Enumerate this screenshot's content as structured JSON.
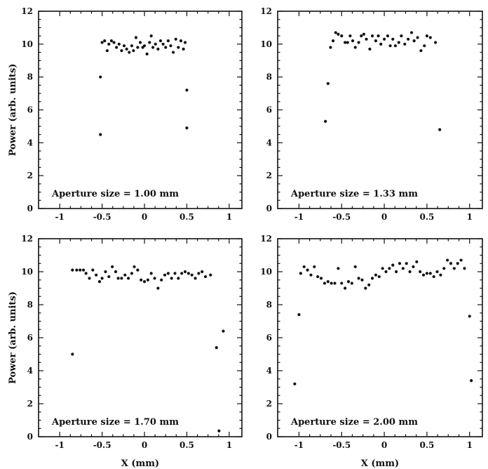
{
  "chart_data": [
    {
      "type": "scatter",
      "annotation": "Aperture size = 1.00 mm",
      "xlabel": "",
      "ylabel": "Power (arb. units)",
      "xlim": [
        -1.25,
        1.15
      ],
      "ylim": [
        0,
        12
      ],
      "xticks": [
        "-1",
        "-0.5",
        "0",
        "0.5",
        "1"
      ],
      "xtick_values": [
        -1,
        -0.5,
        0,
        0.5,
        1
      ],
      "yticks": [
        "0",
        "2",
        "4",
        "6",
        "8",
        "10",
        "12"
      ],
      "ytick_values": [
        0,
        2,
        4,
        6,
        8,
        10,
        12
      ],
      "grid": false,
      "points": [
        [
          -0.52,
          4.5
        ],
        [
          -0.52,
          8.0
        ],
        [
          0.5,
          7.2
        ],
        [
          0.5,
          4.9
        ],
        [
          -0.5,
          10.1
        ],
        [
          -0.47,
          10.2
        ],
        [
          -0.44,
          9.6
        ],
        [
          -0.42,
          10.0
        ],
        [
          -0.39,
          10.2
        ],
        [
          -0.36,
          10.1
        ],
        [
          -0.33,
          9.8
        ],
        [
          -0.3,
          10.0
        ],
        [
          -0.27,
          9.6
        ],
        [
          -0.24,
          9.9
        ],
        [
          -0.21,
          9.7
        ],
        [
          -0.18,
          9.5
        ],
        [
          -0.15,
          9.9
        ],
        [
          -0.13,
          9.6
        ],
        [
          -0.1,
          10.4
        ],
        [
          -0.08,
          9.8
        ],
        [
          -0.05,
          10.1
        ],
        [
          -0.02,
          9.8
        ],
        [
          0.0,
          9.9
        ],
        [
          0.03,
          9.4
        ],
        [
          0.06,
          10.1
        ],
        [
          0.08,
          10.5
        ],
        [
          0.1,
          9.8
        ],
        [
          0.13,
          10.0
        ],
        [
          0.16,
          9.7
        ],
        [
          0.19,
          10.2
        ],
        [
          0.22,
          10.0
        ],
        [
          0.25,
          9.8
        ],
        [
          0.28,
          10.2
        ],
        [
          0.31,
          9.9
        ],
        [
          0.34,
          9.5
        ],
        [
          0.37,
          10.3
        ],
        [
          0.4,
          9.8
        ],
        [
          0.43,
          10.2
        ],
        [
          0.46,
          9.7
        ],
        [
          0.48,
          10.1
        ]
      ]
    },
    {
      "type": "scatter",
      "annotation": "Aperture size = 1.33 mm",
      "xlabel": "",
      "ylabel": "",
      "xlim": [
        -1.25,
        1.15
      ],
      "ylim": [
        0,
        12
      ],
      "xticks": [
        "-1",
        "-0.5",
        "0",
        "0.5",
        "1"
      ],
      "xtick_values": [
        -1,
        -0.5,
        0,
        0.5,
        1
      ],
      "yticks": [
        "0",
        "2",
        "4",
        "6",
        "8",
        "10",
        "12"
      ],
      "ytick_values": [
        0,
        2,
        4,
        6,
        8,
        10,
        12
      ],
      "grid": false,
      "points": [
        [
          -0.69,
          5.3
        ],
        [
          -0.66,
          7.6
        ],
        [
          0.65,
          4.8
        ],
        [
          -0.63,
          9.8
        ],
        [
          -0.6,
          10.2
        ],
        [
          -0.57,
          10.7
        ],
        [
          -0.54,
          10.6
        ],
        [
          -0.5,
          10.5
        ],
        [
          -0.46,
          10.1
        ],
        [
          -0.43,
          10.1
        ],
        [
          -0.4,
          10.5
        ],
        [
          -0.37,
          10.2
        ],
        [
          -0.34,
          9.8
        ],
        [
          -0.3,
          10.1
        ],
        [
          -0.27,
          10.5
        ],
        [
          -0.24,
          10.6
        ],
        [
          -0.21,
          10.3
        ],
        [
          -0.17,
          9.7
        ],
        [
          -0.14,
          10.5
        ],
        [
          -0.1,
          10.2
        ],
        [
          -0.07,
          10.5
        ],
        [
          -0.04,
          10.0
        ],
        [
          0.0,
          10.3
        ],
        [
          0.04,
          10.5
        ],
        [
          0.07,
          9.9
        ],
        [
          0.1,
          10.3
        ],
        [
          0.13,
          9.9
        ],
        [
          0.17,
          10.1
        ],
        [
          0.2,
          10.5
        ],
        [
          0.24,
          10.0
        ],
        [
          0.28,
          10.3
        ],
        [
          0.32,
          10.7
        ],
        [
          0.35,
          10.2
        ],
        [
          0.39,
          10.4
        ],
        [
          0.43,
          9.6
        ],
        [
          0.47,
          9.9
        ],
        [
          0.5,
          10.5
        ],
        [
          0.54,
          10.4
        ],
        [
          0.6,
          10.1
        ]
      ]
    },
    {
      "type": "scatter",
      "annotation": "Aperture size = 1.70 mm",
      "xlabel": "X (mm)",
      "ylabel": "Power (arb. units)",
      "xlim": [
        -1.25,
        1.15
      ],
      "ylim": [
        0,
        12
      ],
      "xticks": [
        "-1",
        "-0.5",
        "0",
        "0.5",
        "1"
      ],
      "xtick_values": [
        -1,
        -0.5,
        0,
        0.5,
        1
      ],
      "yticks": [
        "0",
        "2",
        "4",
        "6",
        "8",
        "10",
        "12"
      ],
      "ytick_values": [
        0,
        2,
        4,
        6,
        8,
        10,
        12
      ],
      "grid": false,
      "points": [
        [
          -0.85,
          5.0
        ],
        [
          0.85,
          5.4
        ],
        [
          0.93,
          6.4
        ],
        [
          0.88,
          0.35
        ],
        [
          -0.85,
          10.1
        ],
        [
          -0.8,
          10.1
        ],
        [
          -0.76,
          10.1
        ],
        [
          -0.72,
          10.1
        ],
        [
          -0.69,
          9.9
        ],
        [
          -0.65,
          9.6
        ],
        [
          -0.61,
          10.1
        ],
        [
          -0.57,
          9.8
        ],
        [
          -0.53,
          9.4
        ],
        [
          -0.5,
          9.6
        ],
        [
          -0.46,
          10.0
        ],
        [
          -0.42,
          9.7
        ],
        [
          -0.38,
          10.3
        ],
        [
          -0.34,
          10.0
        ],
        [
          -0.31,
          9.6
        ],
        [
          -0.27,
          9.6
        ],
        [
          -0.23,
          9.8
        ],
        [
          -0.19,
          9.6
        ],
        [
          -0.15,
          9.9
        ],
        [
          -0.12,
          10.3
        ],
        [
          -0.08,
          10.1
        ],
        [
          -0.04,
          9.5
        ],
        [
          0.0,
          9.4
        ],
        [
          0.04,
          9.5
        ],
        [
          0.08,
          9.9
        ],
        [
          0.12,
          9.6
        ],
        [
          0.16,
          9.0
        ],
        [
          0.2,
          9.5
        ],
        [
          0.24,
          9.8
        ],
        [
          0.28,
          9.9
        ],
        [
          0.32,
          9.6
        ],
        [
          0.36,
          9.9
        ],
        [
          0.4,
          9.6
        ],
        [
          0.44,
          9.9
        ],
        [
          0.48,
          10.0
        ],
        [
          0.52,
          9.9
        ],
        [
          0.56,
          9.8
        ],
        [
          0.6,
          9.6
        ],
        [
          0.64,
          9.9
        ],
        [
          0.68,
          10.0
        ],
        [
          0.72,
          9.7
        ],
        [
          0.78,
          9.8
        ]
      ]
    },
    {
      "type": "scatter",
      "annotation": "Aperture size = 2.00 mm",
      "xlabel": "X (mm)",
      "ylabel": "",
      "xlim": [
        -1.25,
        1.15
      ],
      "ylim": [
        0,
        12
      ],
      "xticks": [
        "-1",
        "-0.5",
        "0",
        "0.5",
        "1"
      ],
      "xtick_values": [
        -1,
        -0.5,
        0,
        0.5,
        1
      ],
      "yticks": [
        "0",
        "2",
        "4",
        "6",
        "8",
        "10",
        "12"
      ],
      "ytick_values": [
        0,
        2,
        4,
        6,
        8,
        10,
        12
      ],
      "grid": false,
      "points": [
        [
          -1.05,
          3.2
        ],
        [
          -1.0,
          7.4
        ],
        [
          1.0,
          7.3
        ],
        [
          1.02,
          3.4
        ],
        [
          -0.98,
          9.9
        ],
        [
          -0.94,
          10.3
        ],
        [
          -0.9,
          10.1
        ],
        [
          -0.86,
          9.8
        ],
        [
          -0.82,
          10.3
        ],
        [
          -0.78,
          9.7
        ],
        [
          -0.74,
          9.6
        ],
        [
          -0.7,
          9.3
        ],
        [
          -0.66,
          9.4
        ],
        [
          -0.62,
          9.3
        ],
        [
          -0.58,
          9.3
        ],
        [
          -0.54,
          10.2
        ],
        [
          -0.5,
          9.3
        ],
        [
          -0.46,
          9.0
        ],
        [
          -0.42,
          9.4
        ],
        [
          -0.38,
          9.3
        ],
        [
          -0.34,
          10.3
        ],
        [
          -0.3,
          9.6
        ],
        [
          -0.26,
          9.5
        ],
        [
          -0.22,
          9.0
        ],
        [
          -0.18,
          9.2
        ],
        [
          -0.14,
          9.6
        ],
        [
          -0.1,
          9.8
        ],
        [
          -0.06,
          9.7
        ],
        [
          -0.02,
          10.2
        ],
        [
          0.02,
          10.0
        ],
        [
          0.06,
          10.2
        ],
        [
          0.1,
          10.4
        ],
        [
          0.14,
          10.0
        ],
        [
          0.18,
          10.5
        ],
        [
          0.22,
          10.2
        ],
        [
          0.26,
          10.5
        ],
        [
          0.3,
          10.0
        ],
        [
          0.34,
          10.3
        ],
        [
          0.38,
          10.6
        ],
        [
          0.42,
          10.0
        ],
        [
          0.46,
          9.8
        ],
        [
          0.5,
          9.9
        ],
        [
          0.54,
          9.9
        ],
        [
          0.58,
          9.7
        ],
        [
          0.62,
          10.0
        ],
        [
          0.66,
          9.8
        ],
        [
          0.7,
          10.2
        ],
        [
          0.74,
          10.7
        ],
        [
          0.78,
          10.5
        ],
        [
          0.82,
          10.2
        ],
        [
          0.86,
          10.5
        ],
        [
          0.9,
          10.7
        ],
        [
          0.94,
          10.2
        ]
      ]
    }
  ]
}
